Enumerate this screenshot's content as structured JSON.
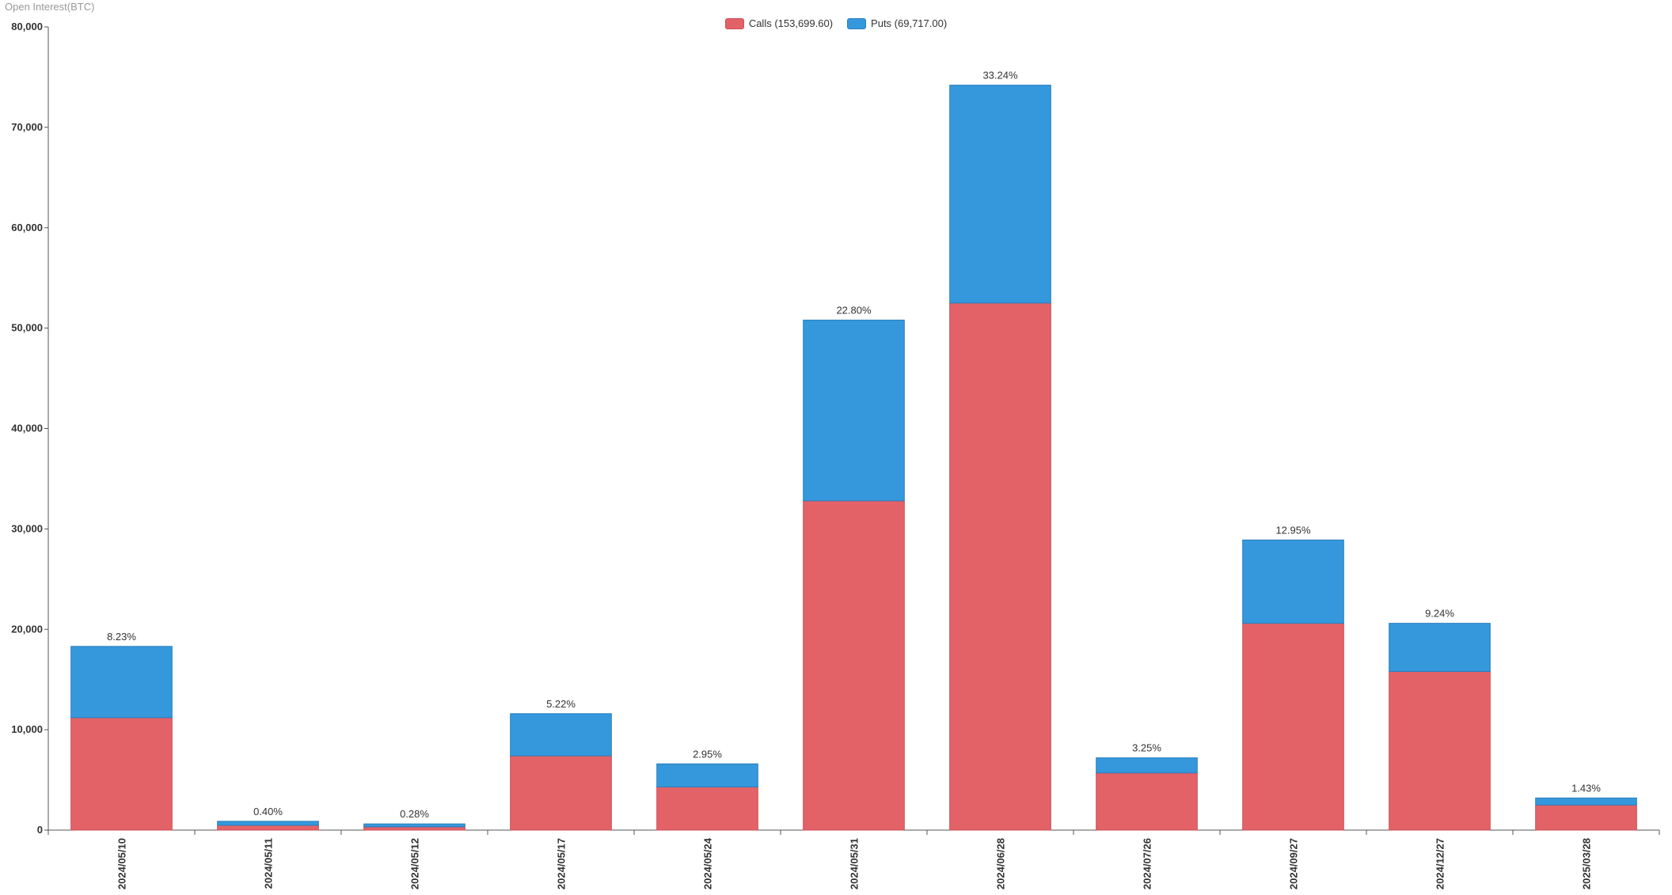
{
  "chart_data": {
    "type": "bar",
    "stacked": true,
    "ylabel": "Open Interest(BTC)",
    "ylim": [
      0,
      80000
    ],
    "yticks": [
      0,
      10000,
      20000,
      30000,
      40000,
      50000,
      60000,
      70000,
      80000
    ],
    "ytick_labels": [
      "0",
      "10,000",
      "20,000",
      "30,000",
      "40,000",
      "50,000",
      "60,000",
      "70,000",
      "80,000"
    ],
    "grid": false,
    "legend_position": "top-center",
    "categories": [
      "2024/05/10",
      "2024/05/11",
      "2024/05/12",
      "2024/05/17",
      "2024/05/24",
      "2024/05/31",
      "2024/06/28",
      "2024/07/26",
      "2024/09/27",
      "2024/12/27",
      "2025/03/28"
    ],
    "series": [
      {
        "name": "Calls",
        "legend_label": "Calls (153,699.60)",
        "color": "#e36268",
        "values": [
          11200,
          480,
          330,
          7400,
          4300,
          32800,
          52500,
          5700,
          20600,
          15800,
          2500
        ]
      },
      {
        "name": "Puts",
        "legend_label": "Puts (69,717.00)",
        "color": "#3598dc",
        "values": [
          7100,
          400,
          290,
          4200,
          2300,
          18000,
          21700,
          1500,
          8300,
          4800,
          700
        ]
      }
    ],
    "bar_labels": [
      "8.23%",
      "0.40%",
      "0.28%",
      "5.22%",
      "2.95%",
      "22.80%",
      "33.24%",
      "3.25%",
      "12.95%",
      "9.24%",
      "1.43%"
    ]
  }
}
